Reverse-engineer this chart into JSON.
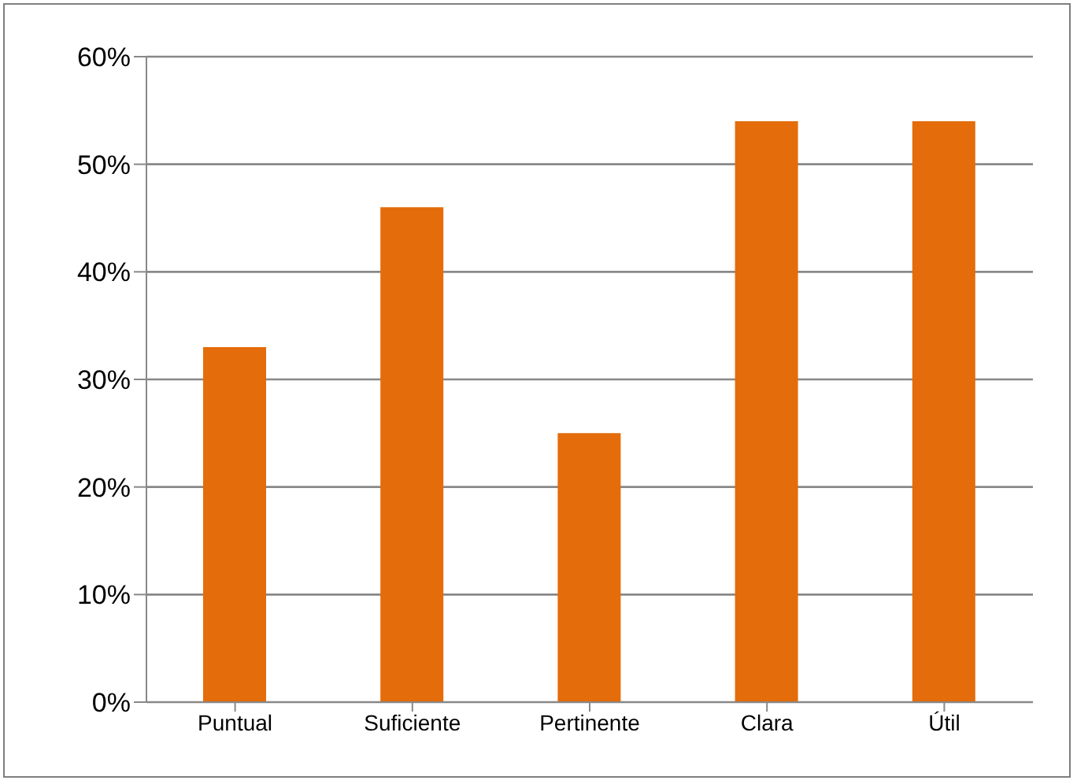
{
  "chart_data": {
    "type": "bar",
    "categories": [
      "Puntual",
      "Suficiente",
      "Pertinente",
      "Clara",
      "Útil"
    ],
    "values": [
      33,
      46,
      25,
      54,
      54
    ],
    "color": "#e46c0a",
    "ylim": [
      0,
      60
    ],
    "yticks": [
      {
        "value": 0,
        "label": "0%"
      },
      {
        "value": 10,
        "label": "10%"
      },
      {
        "value": 20,
        "label": "20%"
      },
      {
        "value": 30,
        "label": "30%"
      },
      {
        "value": 40,
        "label": "40%"
      },
      {
        "value": 50,
        "label": "50%"
      },
      {
        "value": 60,
        "label": "60%"
      }
    ],
    "grid": "y",
    "legend": false
  }
}
